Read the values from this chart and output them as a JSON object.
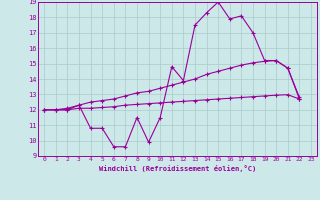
{
  "xlabel": "Windchill (Refroidissement éolien,°C)",
  "background_color": "#cce8e8",
  "line_color": "#990099",
  "grid_color": "#aacccc",
  "xlim": [
    -0.5,
    23.5
  ],
  "ylim": [
    9,
    19
  ],
  "xticks": [
    0,
    1,
    2,
    3,
    4,
    5,
    6,
    7,
    8,
    9,
    10,
    11,
    12,
    13,
    14,
    15,
    16,
    17,
    18,
    19,
    20,
    21,
    22,
    23
  ],
  "yticks": [
    9,
    10,
    11,
    12,
    13,
    14,
    15,
    16,
    17,
    18,
    19
  ],
  "hours": [
    0,
    1,
    2,
    3,
    4,
    5,
    6,
    7,
    8,
    9,
    10,
    11,
    12,
    13,
    14,
    15,
    16,
    17,
    18,
    19,
    20,
    21,
    22,
    23
  ],
  "temp_line": [
    12.0,
    12.0,
    12.0,
    12.3,
    10.8,
    10.8,
    9.6,
    9.6,
    11.5,
    9.9,
    11.5,
    14.8,
    13.9,
    17.5,
    18.3,
    19.0,
    17.9,
    18.1,
    17.0,
    15.2,
    15.2,
    14.7,
    12.8,
    null
  ],
  "upper_trend": [
    12.0,
    12.0,
    12.1,
    12.3,
    12.5,
    12.6,
    12.7,
    12.9,
    13.1,
    13.2,
    13.4,
    13.6,
    13.8,
    14.0,
    14.3,
    14.5,
    14.7,
    14.9,
    15.05,
    15.15,
    15.2,
    14.7,
    12.7,
    null
  ],
  "lower_trend": [
    12.0,
    12.0,
    12.0,
    12.1,
    12.1,
    12.15,
    12.2,
    12.3,
    12.35,
    12.4,
    12.45,
    12.5,
    12.55,
    12.6,
    12.65,
    12.7,
    12.75,
    12.8,
    12.85,
    12.9,
    12.95,
    12.98,
    12.7,
    null
  ]
}
